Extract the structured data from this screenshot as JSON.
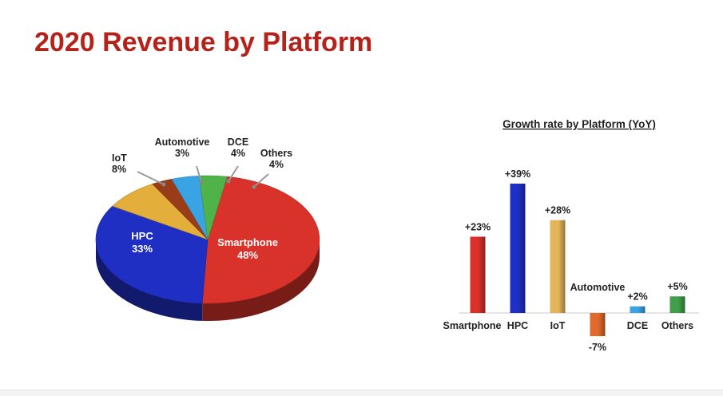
{
  "slide": {
    "title": "2020 Revenue by Platform"
  },
  "chart_data": [
    {
      "type": "pie",
      "title": "",
      "slices": [
        {
          "label": "Smartphone",
          "value": 48,
          "display": "48%",
          "color": "#d8322a"
        },
        {
          "label": "HPC",
          "value": 33,
          "display": "33%",
          "color": "#1f2fc4"
        },
        {
          "label": "IoT",
          "value": 8,
          "display": "8%",
          "color": "#e4ae3a"
        },
        {
          "label": "Automotive",
          "value": 3,
          "display": "3%",
          "color": "#9a3c18"
        },
        {
          "label": "DCE",
          "value": 4,
          "display": "4%",
          "color": "#3aa3e3"
        },
        {
          "label": "Others",
          "value": 4,
          "display": "4%",
          "color": "#4fb34a"
        }
      ]
    },
    {
      "type": "bar",
      "title": "Growth rate by Platform (YoY)",
      "categories": [
        "Smartphone",
        "HPC",
        "IoT",
        "Automotive",
        "DCE",
        "Others"
      ],
      "values": [
        23,
        39,
        28,
        -7,
        2,
        5
      ],
      "labels": [
        "+23%",
        "+39%",
        "+28%",
        "-7%",
        "+2%",
        "+5%"
      ],
      "colors": [
        "#d8322a",
        "#1f2fc4",
        "#e4b45a",
        "#e0692c",
        "#3aa3e3",
        "#3f9f4a"
      ],
      "ylim": [
        -10,
        45
      ],
      "grid": false
    }
  ]
}
